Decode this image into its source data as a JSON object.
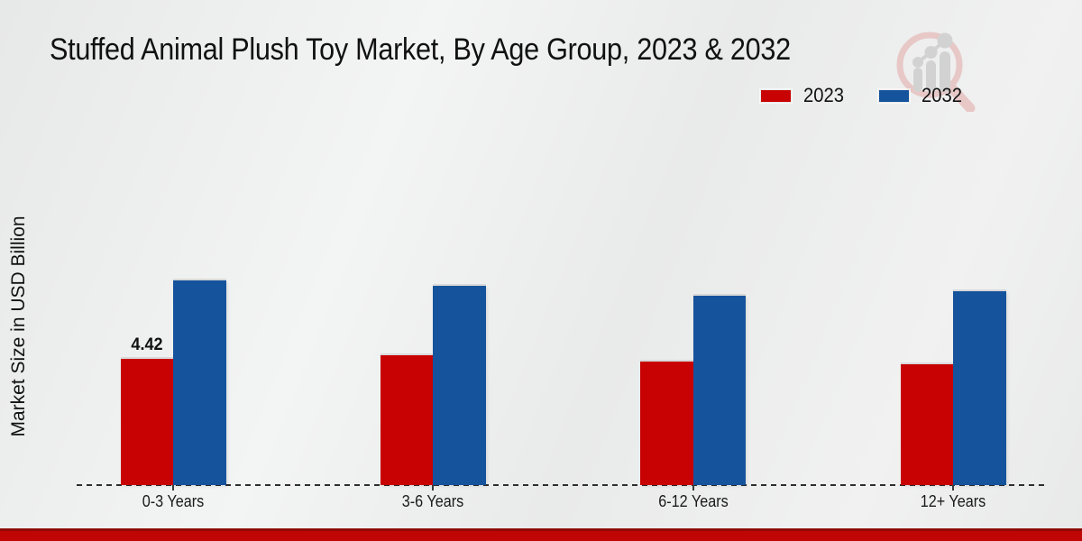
{
  "header": {
    "title": "Stuffed Animal Plush Toy Market, By Age Group, 2023 & 2032"
  },
  "chart_data": {
    "type": "bar",
    "title": "Stuffed Animal Plush Toy Market, By Age Group, 2023 & 2032",
    "categories": [
      "0-3 Years",
      "3-6 Years",
      "6-12 Years",
      "12+ Years"
    ],
    "series": [
      {
        "name": "2023",
        "color": "#c80202",
        "values": [
          4.42,
          4.55,
          4.33,
          4.23
        ]
      },
      {
        "name": "2032",
        "color": "#15539c",
        "values": [
          7.17,
          6.98,
          6.63,
          6.79
        ]
      }
    ],
    "value_labels": [
      {
        "series_index": 0,
        "category_index": 0,
        "text": "4.42"
      }
    ],
    "xlabel": "",
    "ylabel": "Market Size in USD Billion",
    "ylim": [
      0,
      8
    ],
    "grid": false,
    "legend_position": "top-right",
    "axis_line_style": "dashed",
    "background_color": "#ececec"
  },
  "watermark": {
    "icon": "magnifier-bar-chart-logo"
  },
  "footer": {
    "accent_color": "#c00505"
  }
}
